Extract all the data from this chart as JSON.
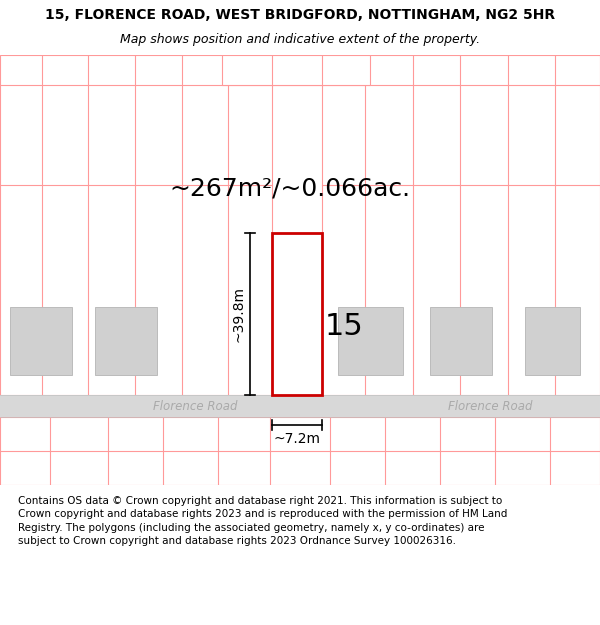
{
  "title_line1": "15, FLORENCE ROAD, WEST BRIDGFORD, NOTTINGHAM, NG2 5HR",
  "title_line2": "Map shows position and indicative extent of the property.",
  "area_label": "~267m²/~0.066ac.",
  "height_label": "~39.8m",
  "width_label": "~7.2m",
  "number_label": "15",
  "road_label_left": "Florence Road",
  "road_label_right": "Florence Road",
  "footer_text": "Contains OS data © Crown copyright and database right 2021. This information is subject to Crown copyright and database rights 2023 and is reproduced with the permission of HM Land Registry. The polygons (including the associated geometry, namely x, y co-ordinates) are subject to Crown copyright and database rights 2023 Ordnance Survey 100026316.",
  "bg_color": "#ffffff",
  "map_bg": "#f7f7f7",
  "plot_outline_color": "#cc0000",
  "parcel_outline_color": "#ff9999",
  "building_fill_color": "#d0d0d0",
  "building_edge_color": "#bbbbbb",
  "road_fill_color": "#d8d8d8",
  "road_text_color": "#aaaaaa",
  "title_fontsize": 10,
  "subtitle_fontsize": 9,
  "area_fontsize": 18,
  "number_fontsize": 22,
  "dimension_fontsize": 10,
  "footer_fontsize": 7.5
}
